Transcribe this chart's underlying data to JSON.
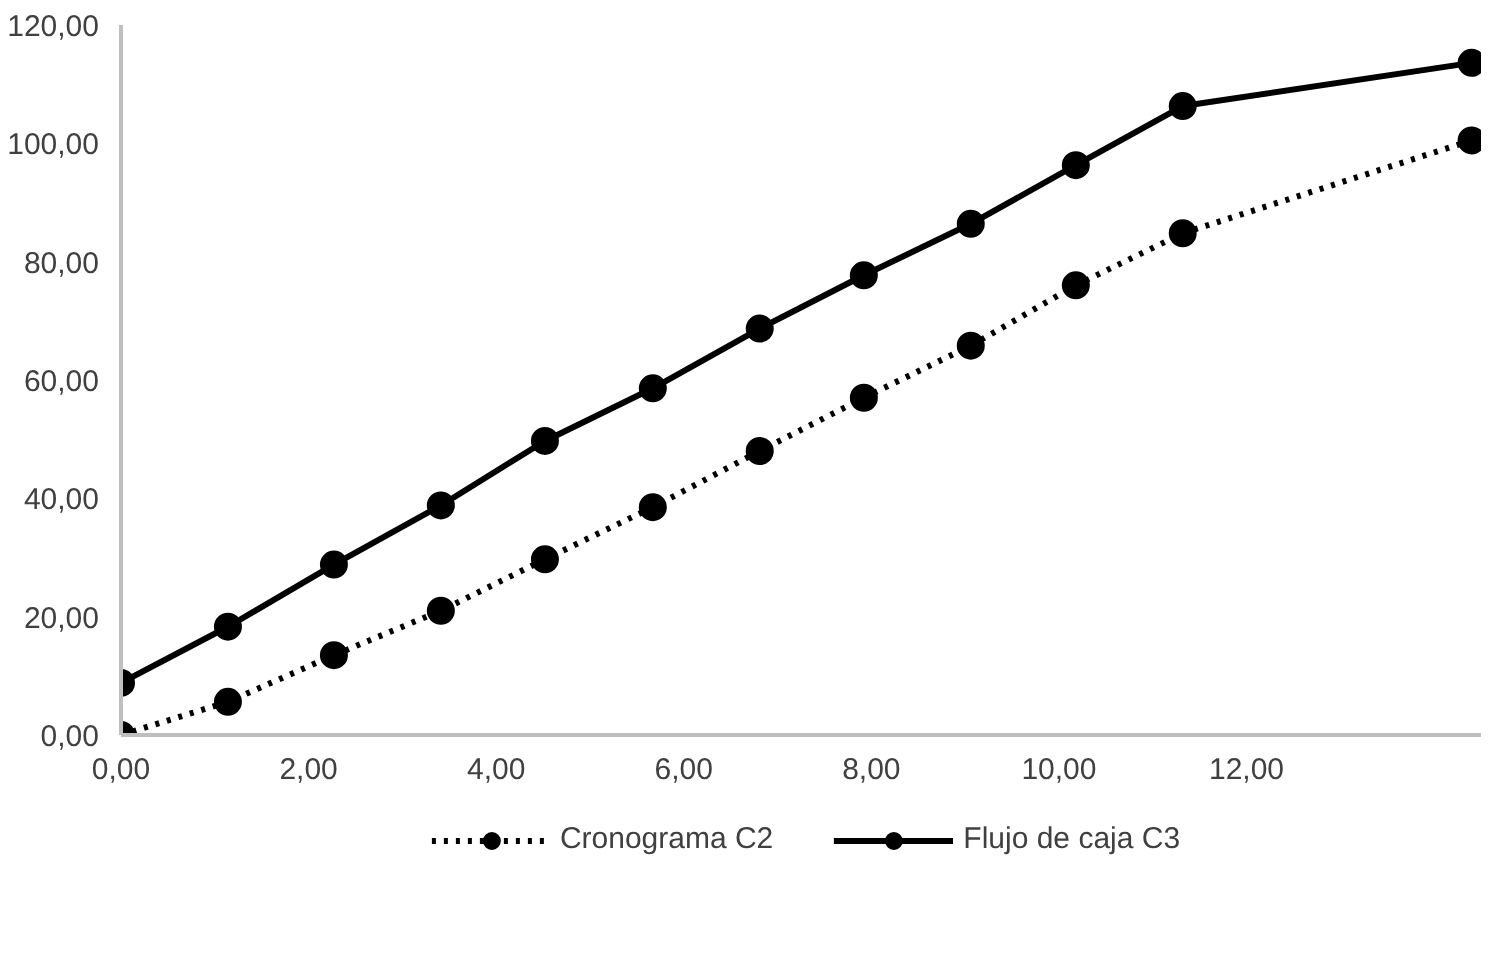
{
  "chart_data": {
    "type": "line",
    "x": [
      0,
      1.14,
      2.27,
      3.41,
      4.52,
      5.67,
      6.81,
      7.92,
      9.06,
      10.18,
      11.32,
      14.4
    ],
    "series": [
      {
        "name": "Cronograma C2",
        "color": "#000000",
        "line_style": "dotted",
        "values": [
          0,
          5.6,
          13.5,
          21,
          29.7,
          38.5,
          48,
          57,
          65.8,
          76,
          84.8,
          100.5
        ]
      },
      {
        "name": "Flujo de caja C3",
        "color": "#000000",
        "line_style": "solid",
        "values": [
          8.8,
          18.3,
          28.8,
          38.8,
          49.7,
          58.6,
          68.7,
          77.7,
          86.4,
          96.3,
          106.3,
          113.6
        ]
      }
    ],
    "xlim": [
      0,
      14.5
    ],
    "xticks": [
      {
        "value": 0,
        "label": "0,00"
      },
      {
        "value": 2,
        "label": "2,00"
      },
      {
        "value": 4,
        "label": "4,00"
      },
      {
        "value": 6,
        "label": "6,00"
      },
      {
        "value": 8,
        "label": "8,00"
      },
      {
        "value": 10,
        "label": "10,00"
      },
      {
        "value": 12,
        "label": "12,00"
      }
    ],
    "ylim": [
      0,
      120
    ],
    "yticks": [
      {
        "value": 0,
        "label": "0,00"
      },
      {
        "value": 20,
        "label": "20,00"
      },
      {
        "value": 40,
        "label": "40,00"
      },
      {
        "value": 60,
        "label": "60,00"
      },
      {
        "value": 80,
        "label": "80,00"
      },
      {
        "value": 100,
        "label": "100,00"
      },
      {
        "value": 120,
        "label": "120,00"
      }
    ],
    "grid": false,
    "legend": "bottom",
    "marker": "circle"
  }
}
